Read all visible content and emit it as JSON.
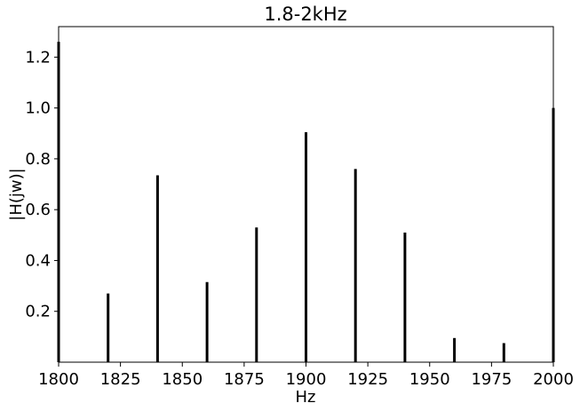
{
  "chart_data": {
    "type": "bar",
    "title": "1.8-2kHz",
    "xlabel": "Hz",
    "ylabel": "|H(jw)|",
    "xlim": [
      1800,
      2000
    ],
    "ylim": [
      0,
      1.32
    ],
    "xticks": [
      "1800",
      "1825",
      "1850",
      "1875",
      "1900",
      "1925",
      "1950",
      "1975",
      "2000"
    ],
    "yticks": [
      "0.2",
      "0.4",
      "0.6",
      "0.8",
      "1.0",
      "1.2"
    ],
    "grid": false,
    "series": [
      {
        "x": [
          1800,
          1820,
          1840,
          1860,
          1880,
          1900,
          1920,
          1940,
          1960,
          1980,
          2000
        ],
        "values": [
          1.26,
          0.27,
          0.735,
          0.315,
          0.53,
          0.905,
          0.76,
          0.51,
          0.095,
          0.075,
          1.0
        ]
      }
    ],
    "colors": {
      "bars": "#000000",
      "axes": "#000000",
      "background": "#ffffff"
    }
  }
}
